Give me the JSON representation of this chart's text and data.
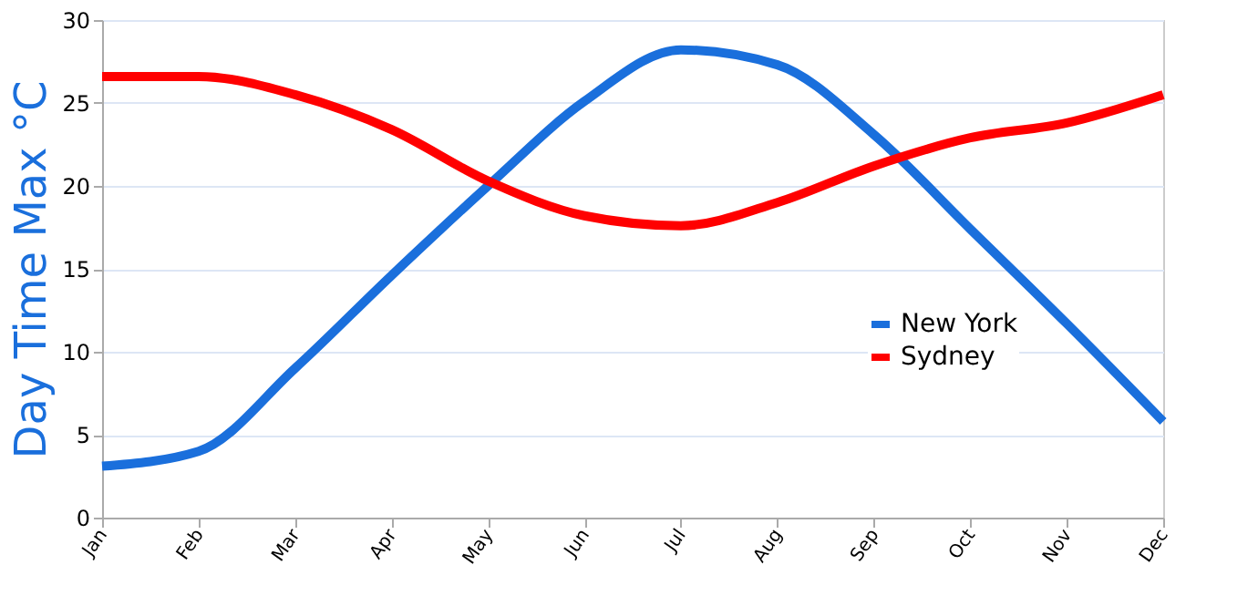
{
  "chart_data": {
    "type": "line",
    "ylabel": "Day Time Max °C",
    "categories": [
      "Jan",
      "Feb",
      "Mar",
      "Apr",
      "May",
      "Jun",
      "Jul",
      "Aug",
      "Sep",
      "Oct",
      "Nov",
      "Dec"
    ],
    "series": [
      {
        "name": "New York",
        "color": "#1a6fdc",
        "values": [
          3.1,
          4.0,
          9.0,
          14.6,
          20.0,
          25.1,
          28.2,
          27.3,
          23.1,
          17.4,
          11.7,
          5.8
        ]
      },
      {
        "name": "Sydney",
        "color": "#ff0000",
        "values": [
          26.6,
          26.6,
          25.5,
          23.4,
          20.3,
          18.2,
          17.6,
          19.0,
          21.2,
          22.9,
          23.8,
          25.5
        ]
      }
    ],
    "ylim": [
      0,
      30
    ],
    "yticks": [
      0,
      5,
      10,
      15,
      20,
      25,
      30
    ],
    "grid": "y",
    "legend": "right",
    "line_style": "solid",
    "marker": "none"
  }
}
